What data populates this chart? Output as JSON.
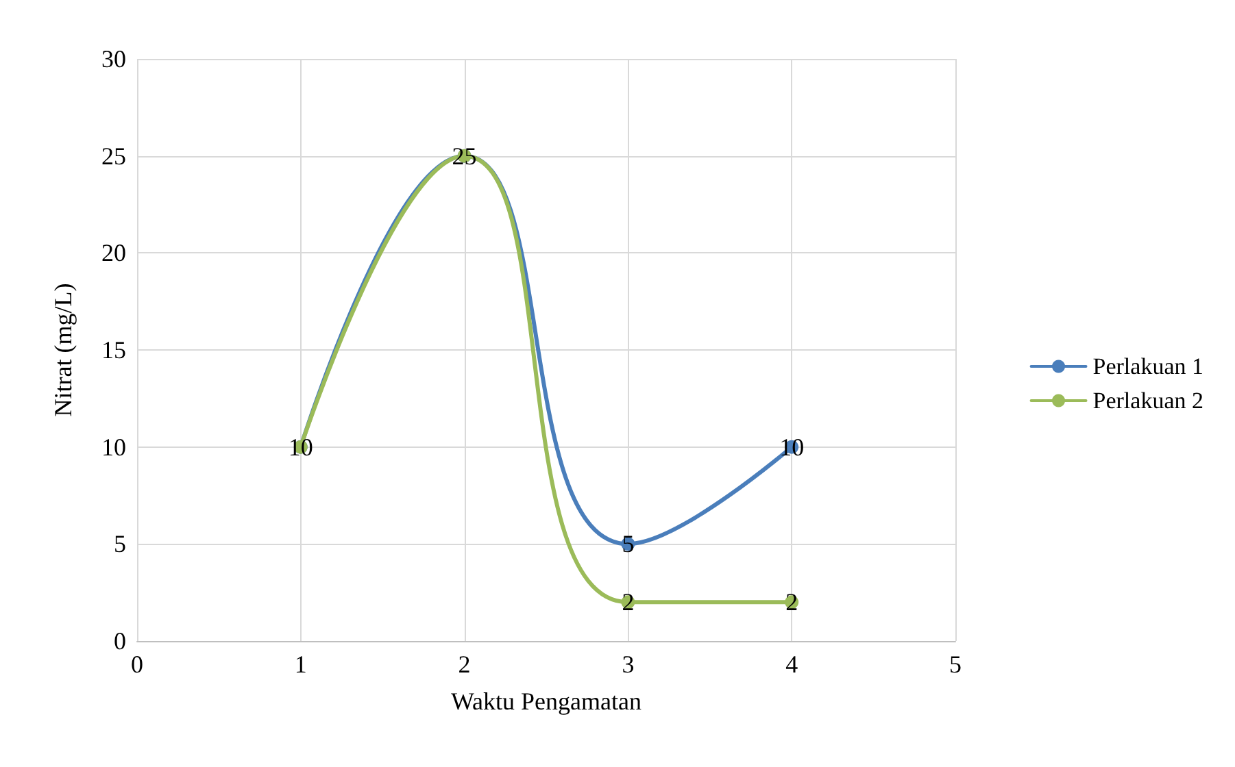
{
  "chart_data": {
    "type": "line",
    "xlabel": "Waktu Pengamatan",
    "ylabel": "Nitrat (mg/L)",
    "x": [
      1,
      2,
      3,
      4
    ],
    "series": [
      {
        "name": "Perlakuan 1",
        "color": "#4a7ebb",
        "values": [
          10,
          25,
          5,
          10
        ]
      },
      {
        "name": "Perlakuan 2",
        "color": "#9bbb59",
        "values": [
          10,
          25,
          2,
          2
        ],
        "value_labels": [
          null,
          null,
          "2",
          "2"
        ]
      }
    ],
    "xlim": [
      0,
      5
    ],
    "xticks": [
      0,
      1,
      2,
      3,
      4,
      5
    ],
    "ylim": [
      0,
      30
    ],
    "yticks": [
      0,
      5,
      10,
      15,
      20,
      25,
      30
    ],
    "grid": true,
    "legend": "right",
    "marker": "circle",
    "line_style": "solid",
    "data_labels": true
  }
}
